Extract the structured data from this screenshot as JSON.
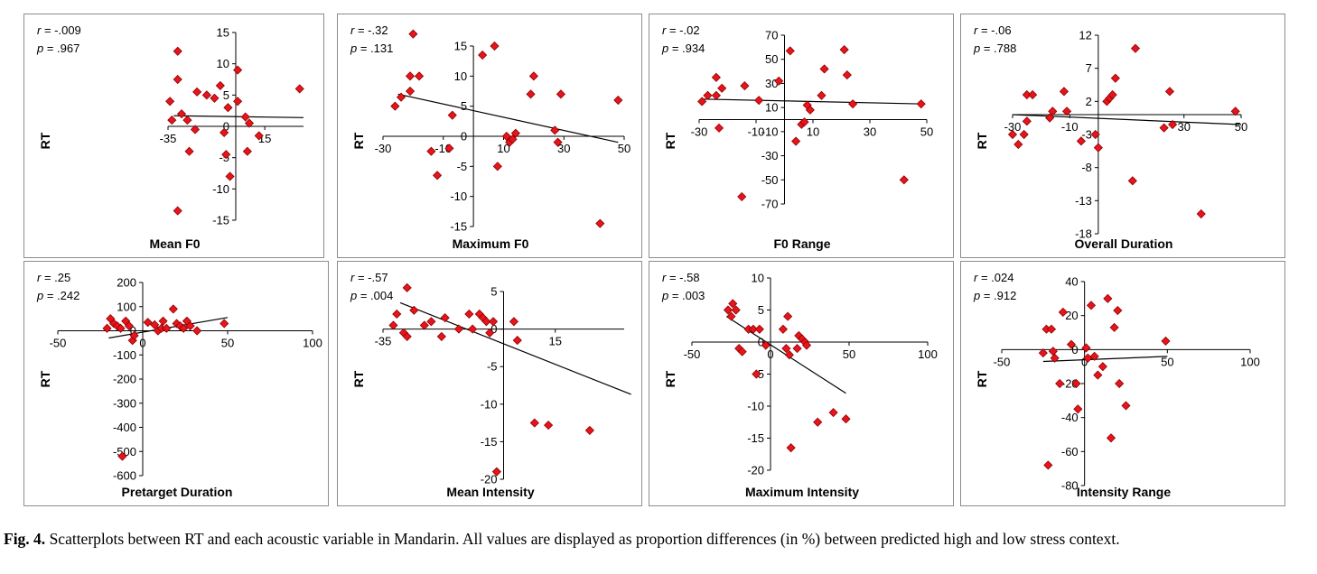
{
  "figure": {
    "caption_label": "Fig. 4.",
    "caption_text": "Scatterplots between RT and each acoustic variable in Mandarin. All values are displayed as proportion differences (in %) between predicted high and low stress context."
  },
  "style": {
    "marker_fill": "#e8141c",
    "marker_stroke": "#8b0000",
    "axis_color": "#000000",
    "trend_color": "#000000"
  },
  "chart_data": [
    {
      "type": "scatter",
      "title": "",
      "xlabel": "Mean F0",
      "ylabel": "RT",
      "r": "r = -.009",
      "p": "p = .967",
      "xlim": [
        -35,
        35
      ],
      "ylim": [
        -15,
        15
      ],
      "xticks": [
        -35,
        15
      ],
      "yticks": [
        -15,
        -10,
        -5,
        0,
        5,
        10,
        15
      ],
      "trend": [
        [
          -32,
          1.7
        ],
        [
          35,
          1.4
        ]
      ],
      "points": [
        [
          -34,
          4
        ],
        [
          -33,
          1
        ],
        [
          -30,
          12
        ],
        [
          -30,
          7.5
        ],
        [
          -30,
          -13.5
        ],
        [
          -28,
          2
        ],
        [
          -25,
          1
        ],
        [
          -24,
          -4
        ],
        [
          -21,
          -0.5
        ],
        [
          -20,
          5.5
        ],
        [
          -15,
          5
        ],
        [
          -11,
          4.5
        ],
        [
          -8,
          6.5
        ],
        [
          -6,
          -1
        ],
        [
          -5,
          -4.5
        ],
        [
          -4,
          3
        ],
        [
          -3,
          -8
        ],
        [
          1,
          4
        ],
        [
          1,
          9
        ],
        [
          5,
          1.5
        ],
        [
          6,
          -4
        ],
        [
          7,
          0.5
        ],
        [
          12,
          -1.5
        ],
        [
          33,
          6
        ]
      ]
    },
    {
      "type": "scatter",
      "title": "",
      "xlabel": "Maximum F0",
      "ylabel": "RT",
      "r": "r = -.32",
      "p": "p = .131",
      "xlim": [
        -30,
        50
      ],
      "ylim": [
        -15,
        15
      ],
      "xticks": [
        -30,
        -10,
        10,
        30,
        50
      ],
      "yticks": [
        -15,
        -10,
        -5,
        0,
        5,
        10,
        15
      ],
      "trend": [
        [
          -25,
          7
        ],
        [
          48,
          -1
        ]
      ],
      "points": [
        [
          -26,
          5
        ],
        [
          -24,
          6.5
        ],
        [
          -21,
          7.5
        ],
        [
          -21,
          10
        ],
        [
          -20,
          17
        ],
        [
          -18,
          10
        ],
        [
          -14,
          -2.5
        ],
        [
          -12,
          -6.5
        ],
        [
          -8,
          -2
        ],
        [
          -7,
          3.5
        ],
        [
          3,
          13.5
        ],
        [
          7,
          15
        ],
        [
          8,
          -5
        ],
        [
          11,
          0
        ],
        [
          12,
          -1
        ],
        [
          13,
          -0.5
        ],
        [
          14,
          0.5
        ],
        [
          19,
          7
        ],
        [
          20,
          10
        ],
        [
          27,
          1
        ],
        [
          28,
          -1
        ],
        [
          29,
          7
        ],
        [
          42,
          -14.5
        ],
        [
          48,
          6
        ]
      ]
    },
    {
      "type": "scatter",
      "title": "",
      "xlabel": "F0 Range",
      "ylabel": "RT",
      "r": "r = -.02",
      "p": "p = .934",
      "xlim": [
        -30,
        50
      ],
      "ylim": [
        -70,
        70
      ],
      "xticks": [
        -30,
        -10,
        10,
        30,
        50
      ],
      "yticks": [
        -70,
        -50,
        -30,
        -10,
        10,
        30,
        50,
        70
      ],
      "trend": [
        [
          -29,
          17
        ],
        [
          48,
          13
        ]
      ],
      "points": [
        [
          -29,
          15
        ],
        [
          -27,
          20
        ],
        [
          -24,
          20
        ],
        [
          -24,
          35
        ],
        [
          -23,
          -7
        ],
        [
          -22,
          26
        ],
        [
          -15,
          -64
        ],
        [
          -14,
          28
        ],
        [
          -9,
          16
        ],
        [
          -2,
          32
        ],
        [
          2,
          57
        ],
        [
          4,
          -18
        ],
        [
          6,
          -4
        ],
        [
          7,
          -2
        ],
        [
          8,
          12
        ],
        [
          9,
          8
        ],
        [
          13,
          20
        ],
        [
          14,
          42
        ],
        [
          21,
          58
        ],
        [
          22,
          37
        ],
        [
          24,
          13
        ],
        [
          42,
          -50
        ],
        [
          48,
          13
        ]
      ]
    },
    {
      "type": "scatter",
      "title": "",
      "xlabel": "Overall Duration",
      "ylabel": "RT",
      "r": "r = -.06",
      "p": "p = .788",
      "xlim": [
        -30,
        50
      ],
      "ylim": [
        -18,
        12
      ],
      "xticks": [
        -30,
        -10,
        30,
        50
      ],
      "yticks": [
        -18,
        -13,
        -8,
        -3,
        2,
        7,
        12
      ],
      "trend": [
        [
          -30,
          0
        ],
        [
          50,
          -1.5
        ]
      ],
      "points": [
        [
          -30,
          -3
        ],
        [
          -28,
          -4.5
        ],
        [
          -26,
          -3
        ],
        [
          -25,
          -1
        ],
        [
          -25,
          3
        ],
        [
          -23,
          3
        ],
        [
          -17,
          -0.5
        ],
        [
          -16,
          0.5
        ],
        [
          -12,
          3.5
        ],
        [
          -11,
          0.5
        ],
        [
          -6,
          -4
        ],
        [
          -1,
          -3
        ],
        [
          0,
          -5
        ],
        [
          3,
          2
        ],
        [
          4,
          2.5
        ],
        [
          5,
          3
        ],
        [
          6,
          5.5
        ],
        [
          12,
          -10
        ],
        [
          13,
          10
        ],
        [
          23,
          -2
        ],
        [
          25,
          3.5
        ],
        [
          26,
          -1.5
        ],
        [
          36,
          -15
        ],
        [
          48,
          0.5
        ]
      ]
    },
    {
      "type": "scatter",
      "title": "",
      "xlabel": "Pretarget Duration",
      "ylabel": "RT",
      "r": "r = .25",
      "p": "p = .242",
      "xlim": [
        -50,
        100
      ],
      "ylim": [
        -600,
        200
      ],
      "xticks": [
        -50,
        0,
        50,
        100
      ],
      "yticks": [
        -600,
        -500,
        -400,
        -300,
        -200,
        -100,
        0,
        100,
        200
      ],
      "trend": [
        [
          -20,
          -30
        ],
        [
          50,
          55
        ]
      ],
      "points": [
        [
          -21,
          10
        ],
        [
          -19,
          50
        ],
        [
          -17,
          30
        ],
        [
          -15,
          20
        ],
        [
          -13,
          10
        ],
        [
          -10,
          40
        ],
        [
          -8,
          20
        ],
        [
          -6,
          -40
        ],
        [
          -5,
          -20
        ],
        [
          3,
          35
        ],
        [
          7,
          25
        ],
        [
          9,
          0
        ],
        [
          11,
          10
        ],
        [
          12,
          40
        ],
        [
          14,
          10
        ],
        [
          18,
          90
        ],
        [
          20,
          30
        ],
        [
          22,
          20
        ],
        [
          24,
          10
        ],
        [
          26,
          40
        ],
        [
          28,
          20
        ],
        [
          32,
          0
        ],
        [
          48,
          30
        ],
        [
          -12,
          -520
        ]
      ]
    },
    {
      "type": "scatter",
      "title": "",
      "xlabel": "Mean Intensity",
      "ylabel": "RT",
      "r": "r = -.57",
      "p": "p = .004",
      "xlim": [
        -35,
        35
      ],
      "ylim": [
        -20,
        5
      ],
      "xticks": [
        -35,
        15
      ],
      "yticks": [
        -20,
        -15,
        -10,
        -5,
        0,
        5
      ],
      "trend": [
        [
          -30,
          3.5
        ],
        [
          37,
          -8.7
        ]
      ],
      "points": [
        [
          -32,
          0.5
        ],
        [
          -31,
          2
        ],
        [
          -29,
          -0.5
        ],
        [
          -28,
          -1
        ],
        [
          -28,
          5.5
        ],
        [
          -26,
          2.5
        ],
        [
          -23,
          0.5
        ],
        [
          -21,
          1
        ],
        [
          -18,
          -1
        ],
        [
          -17,
          1.5
        ],
        [
          -13,
          0
        ],
        [
          -10,
          2
        ],
        [
          -9,
          0
        ],
        [
          -7,
          2
        ],
        [
          -6,
          1.5
        ],
        [
          -5,
          1
        ],
        [
          -4,
          -0.5
        ],
        [
          -3,
          1
        ],
        [
          -2,
          -19
        ],
        [
          3,
          1
        ],
        [
          4,
          -1.5
        ],
        [
          9,
          -12.5
        ],
        [
          13,
          -12.8
        ],
        [
          25,
          -13.5
        ]
      ]
    },
    {
      "type": "scatter",
      "title": "",
      "xlabel": "Maximum Intensity",
      "ylabel": "RT",
      "r": "r = -.58",
      "p": "p = .003",
      "xlim": [
        -50,
        100
      ],
      "ylim": [
        -20,
        10
      ],
      "xticks": [
        -50,
        0,
        50,
        100
      ],
      "yticks": [
        -20,
        -15,
        -10,
        -5,
        0,
        5,
        10
      ],
      "trend": [
        [
          -28,
          4
        ],
        [
          48,
          -8
        ]
      ],
      "points": [
        [
          -27,
          5
        ],
        [
          -25,
          4
        ],
        [
          -24,
          6
        ],
        [
          -22,
          5
        ],
        [
          -20,
          -1
        ],
        [
          -18,
          -1.5
        ],
        [
          -14,
          2
        ],
        [
          -11,
          2
        ],
        [
          -9,
          -5
        ],
        [
          -7,
          2
        ],
        [
          -3,
          -0.5
        ],
        [
          8,
          2
        ],
        [
          10,
          -1
        ],
        [
          11,
          4
        ],
        [
          12,
          -2
        ],
        [
          13,
          -16.5
        ],
        [
          17,
          -1
        ],
        [
          18,
          1
        ],
        [
          20,
          0.5
        ],
        [
          22,
          0
        ],
        [
          23,
          -0.5
        ],
        [
          30,
          -12.5
        ],
        [
          40,
          -11
        ],
        [
          48,
          -12
        ]
      ]
    },
    {
      "type": "scatter",
      "title": "",
      "xlabel": "Intensity Range",
      "ylabel": "RT",
      "r": "r = .024",
      "p": "p = .912",
      "xlim": [
        -50,
        100
      ],
      "ylim": [
        -80,
        40
      ],
      "xticks": [
        -50,
        0,
        50,
        100
      ],
      "yticks": [
        -80,
        -60,
        -40,
        -20,
        0,
        20,
        40
      ],
      "trend": [
        [
          -25,
          -7
        ],
        [
          50,
          -4
        ]
      ],
      "points": [
        [
          -25,
          -2
        ],
        [
          -23,
          12
        ],
        [
          -22,
          -68
        ],
        [
          -20,
          12
        ],
        [
          -19,
          -1
        ],
        [
          -18,
          -5
        ],
        [
          -15,
          -20
        ],
        [
          -13,
          22
        ],
        [
          -8,
          3
        ],
        [
          -5,
          -20
        ],
        [
          -4,
          -35
        ],
        [
          1,
          1
        ],
        [
          2,
          -5
        ],
        [
          4,
          26
        ],
        [
          6,
          -4
        ],
        [
          8,
          -15
        ],
        [
          11,
          -10
        ],
        [
          14,
          30
        ],
        [
          16,
          -52
        ],
        [
          18,
          13
        ],
        [
          20,
          23
        ],
        [
          21,
          -20
        ],
        [
          25,
          -33
        ],
        [
          49,
          5
        ]
      ]
    }
  ]
}
